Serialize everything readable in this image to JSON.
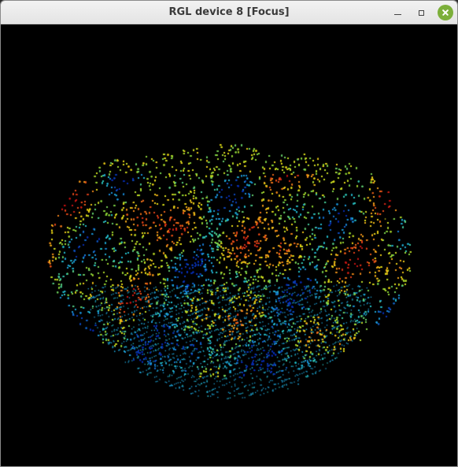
{
  "window": {
    "title": "RGL device 8 [Focus]",
    "controls": {
      "minimize": "minimize-icon",
      "maximize": "maximize-icon",
      "close": "close-icon"
    },
    "close_color": "#7caf3a"
  },
  "scene": {
    "background": "#000000",
    "colormap": [
      "#0b2fb0",
      "#1e90d8",
      "#27c3c8",
      "#8bd43a",
      "#e5de1a",
      "#f2a11c",
      "#e8501c",
      "#c81616"
    ]
  }
}
